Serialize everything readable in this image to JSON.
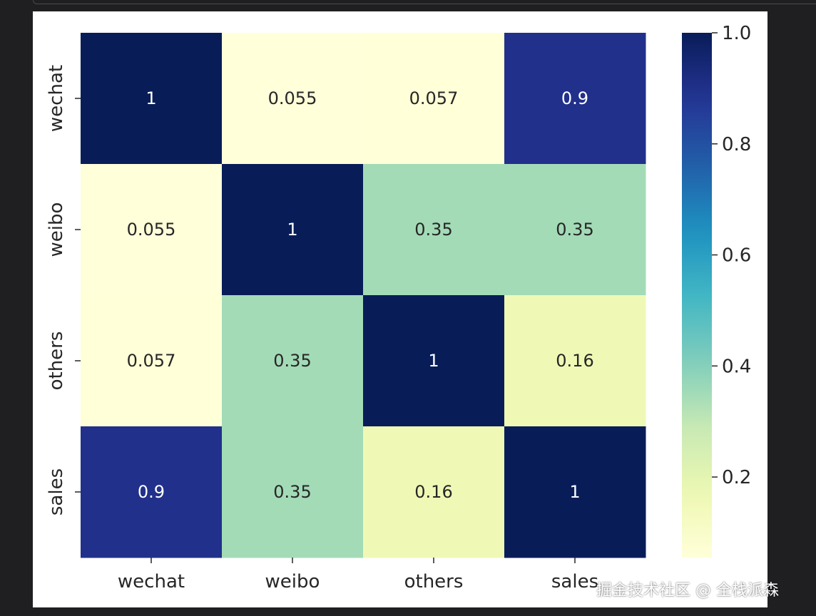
{
  "chart_data": {
    "type": "heatmap",
    "rows": [
      "wechat",
      "weibo",
      "others",
      "sales"
    ],
    "columns": [
      "wechat",
      "weibo",
      "others",
      "sales"
    ],
    "values": [
      [
        1,
        0.055,
        0.057,
        0.9
      ],
      [
        0.055,
        1,
        0.35,
        0.35
      ],
      [
        0.057,
        0.35,
        1,
        0.16
      ],
      [
        0.9,
        0.35,
        0.16,
        1
      ]
    ],
    "annotations": [
      [
        "1",
        "0.055",
        "0.057",
        "0.9"
      ],
      [
        "0.055",
        "1",
        "0.35",
        "0.35"
      ],
      [
        "0.057",
        "0.35",
        "1",
        "0.16"
      ],
      [
        "0.9",
        "0.35",
        "0.16",
        "1"
      ]
    ],
    "colormap": "YlGnBu",
    "colorbar": {
      "min": 0.055,
      "max": 1.0,
      "ticks": [
        0.2,
        0.4,
        0.6,
        0.8,
        1.0
      ],
      "tick_labels": [
        "0.2",
        "0.4",
        "0.6",
        "0.8",
        "1.0"
      ]
    }
  },
  "watermark": "掘金技术社区 @ 全栈派森"
}
